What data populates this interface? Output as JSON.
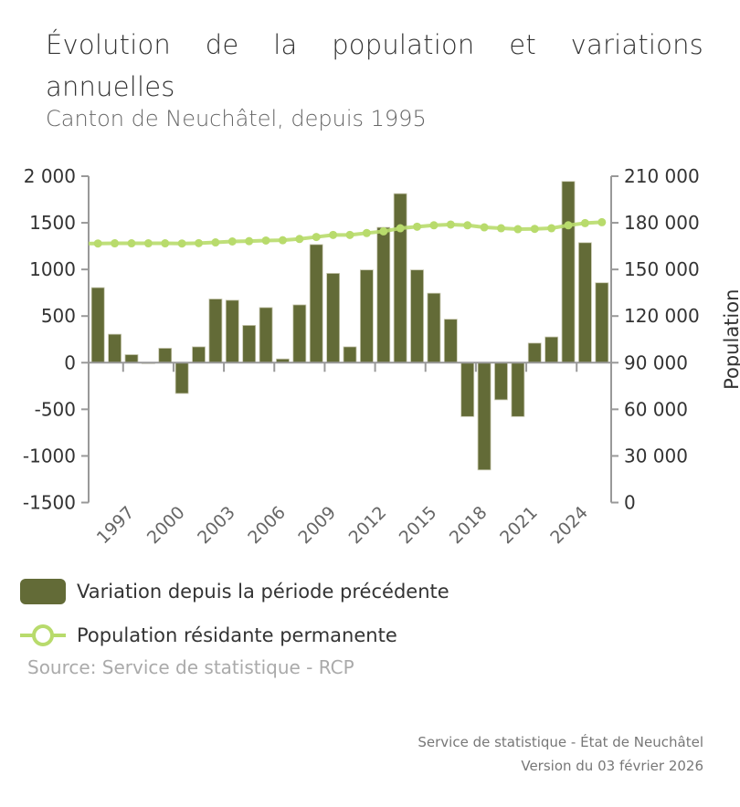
{
  "header": {
    "title": "Évolution de la population et variations annuelles",
    "subtitle": "Canton de Neuchâtel, depuis 1995"
  },
  "colors": {
    "bar": "#636b37",
    "line": "#b8db6c",
    "axis": "#999999"
  },
  "chart_data": {
    "type": "bar",
    "title": "Évolution de la population et variations annuelles",
    "subtitle": "Canton de Neuchâtel, depuis 1995",
    "categories": [
      "1995",
      "1996",
      "1997",
      "1998",
      "1999",
      "2000",
      "2001",
      "2002",
      "2003",
      "2004",
      "2005",
      "2006",
      "2007",
      "2008",
      "2009",
      "2010",
      "2011",
      "2012",
      "2013",
      "2014",
      "2015",
      "2016",
      "2017",
      "2018",
      "2019",
      "2020",
      "2021",
      "2022",
      "2023",
      "2024",
      "2025"
    ],
    "x_tick_labels": [
      "1997",
      "2000",
      "2003",
      "2006",
      "2009",
      "2012",
      "2015",
      "2018",
      "2021",
      "2024"
    ],
    "series": [
      {
        "name": "Variation depuis la période précédente",
        "type": "bar",
        "axis": "left",
        "values": [
          805,
          305,
          86,
          -10,
          155,
          -330,
          170,
          683,
          670,
          400,
          591,
          40,
          620,
          1267,
          958,
          170,
          995,
          1451,
          1813,
          995,
          745,
          466,
          -578,
          -1150,
          -398,
          -578,
          210,
          276,
          1944,
          1287,
          857
        ]
      },
      {
        "name": "Population résidante permanente",
        "type": "line",
        "axis": "right",
        "values": [
          166700,
          166800,
          166800,
          166800,
          166800,
          166700,
          166900,
          167400,
          168000,
          168200,
          168600,
          168800,
          169600,
          170900,
          172200,
          172200,
          173400,
          174500,
          176500,
          177500,
          178400,
          178900,
          178400,
          177100,
          176500,
          175900,
          176100,
          176500,
          178400,
          179800,
          180400
        ]
      }
    ],
    "left_axis": {
      "label": "",
      "min": -1500,
      "max": 2000,
      "ticks": [
        -1500,
        -1000,
        -500,
        0,
        500,
        1000,
        1500,
        2000
      ],
      "tick_labels": [
        "-1500",
        "-1000",
        "-500",
        "0",
        "500",
        "1000",
        "1500",
        "2 000"
      ]
    },
    "right_axis": {
      "label": "Population",
      "min": 0,
      "max": 210000,
      "ticks": [
        0,
        30000,
        60000,
        90000,
        120000,
        150000,
        180000,
        210000
      ],
      "tick_labels": [
        "0",
        "30 000",
        "60 000",
        "90 000",
        "120 000",
        "150 000",
        "180 000",
        "210 000"
      ]
    },
    "grid": false,
    "legend_position": "bottom-left"
  },
  "legend": {
    "items": [
      {
        "label": "Variation depuis la période précédente",
        "kind": "bar"
      },
      {
        "label": "Population résidante permanente",
        "kind": "line"
      }
    ]
  },
  "source": "Source: Service de statistique - RCP",
  "footer": {
    "line1": "Service de statistique - État de Neuchâtel",
    "line2": "Version du 03 février 2026"
  }
}
